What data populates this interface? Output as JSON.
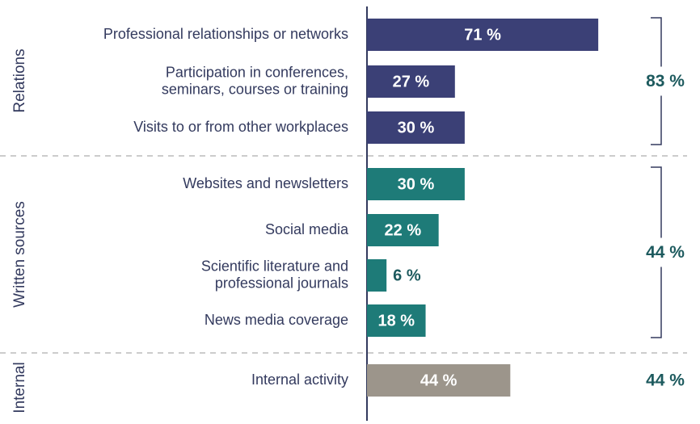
{
  "chart_data": {
    "type": "bar",
    "orientation": "horizontal",
    "xlim": [
      0,
      100
    ],
    "groups": [
      {
        "name": "Relations",
        "color": "#3b4076",
        "total": 83,
        "total_label": "83 %",
        "categories": [
          [
            "Professional relationships or networks"
          ],
          [
            "Participation in conferences,",
            "seminars, courses or training"
          ],
          [
            "Visits to or from other workplaces"
          ]
        ],
        "values": [
          71,
          27,
          30
        ],
        "value_labels": [
          "71 %",
          "27 %",
          "30 %"
        ]
      },
      {
        "name": "Written sources",
        "color": "#1e7b78",
        "total": 44,
        "total_label": "44 %",
        "categories": [
          [
            "Websites and newsletters"
          ],
          [
            "Social media"
          ],
          [
            "Scientific literature and",
            "professional journals"
          ],
          [
            "News media coverage"
          ]
        ],
        "values": [
          30,
          22,
          6,
          18
        ],
        "value_labels": [
          "30 %",
          "22 %",
          "6 %",
          "18 %"
        ]
      },
      {
        "name": "Internal",
        "color": "#9c958b",
        "total": 44,
        "total_label": "44 %",
        "categories": [
          [
            "Internal activity"
          ]
        ],
        "values": [
          44
        ],
        "value_labels": [
          "44 %"
        ]
      }
    ]
  }
}
